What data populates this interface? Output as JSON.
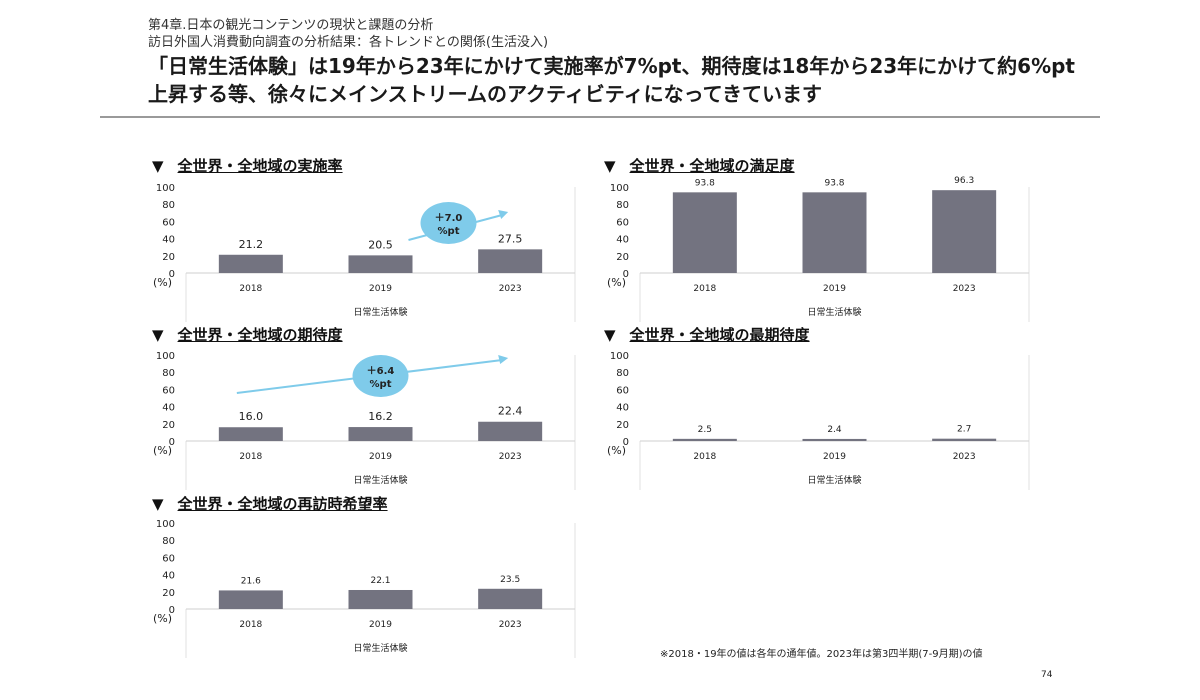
{
  "header": {
    "chapter": "第4章.日本の観光コンテンツの現状と課題の分析",
    "subtitle": "訪日外国人消費動向調査の分析結果：各トレンドとの関係(生活没入)",
    "headline": "「日常生活体験」は19年から23年にかけて実施率が7%pt、期待度は18年から23年にかけて約6%pt上昇する等、徐々にメインストリームのアクティビティになってきています"
  },
  "chart_data": [
    {
      "type": "bar",
      "title": "全世界・全地域の実施率",
      "categories": [
        "2018",
        "2019",
        "2023"
      ],
      "values": [
        21.2,
        20.5,
        27.5
      ],
      "xlabel": "日常生活体験",
      "ylabel": "(%)",
      "ylim": [
        0,
        100
      ],
      "yticks": [
        0,
        20,
        40,
        60,
        80,
        100
      ],
      "grid": false,
      "annotation": {
        "line1": "＋7.0",
        "line2": "%pt"
      }
    },
    {
      "type": "bar",
      "title": "全世界・全地域の満足度",
      "categories": [
        "2018",
        "2019",
        "2023"
      ],
      "values": [
        93.8,
        93.8,
        96.3
      ],
      "xlabel": "日常生活体験",
      "ylabel": "(%)",
      "ylim": [
        0,
        100
      ],
      "yticks": [
        0,
        20,
        40,
        60,
        80,
        100
      ],
      "grid": false
    },
    {
      "type": "bar",
      "title": "全世界・全地域の期待度",
      "categories": [
        "2018",
        "2019",
        "2023"
      ],
      "values": [
        16.0,
        16.2,
        22.4
      ],
      "xlabel": "日常生活体験",
      "ylabel": "(%)",
      "ylim": [
        0,
        100
      ],
      "yticks": [
        0,
        20,
        40,
        60,
        80,
        100
      ],
      "grid": false,
      "annotation": {
        "line1": "＋6.4",
        "line2": "%pt"
      }
    },
    {
      "type": "bar",
      "title": "全世界・全地域の最期待度",
      "categories": [
        "2018",
        "2019",
        "2023"
      ],
      "values": [
        2.5,
        2.4,
        2.7
      ],
      "xlabel": "日常生活体験",
      "ylabel": "(%)",
      "ylim": [
        0,
        100
      ],
      "yticks": [
        0,
        20,
        40,
        60,
        80,
        100
      ],
      "grid": false
    },
    {
      "type": "bar",
      "title": "全世界・全地域の再訪時希望率",
      "categories": [
        "2018",
        "2019",
        "2023"
      ],
      "values": [
        21.6,
        22.1,
        23.5
      ],
      "xlabel": "日常生活体験",
      "ylabel": "(%)",
      "ylim": [
        0,
        100
      ],
      "yticks": [
        0,
        20,
        40,
        60,
        80,
        100
      ],
      "grid": false
    }
  ],
  "footer": {
    "note": "※2018・19年の値は各年の通年値。2023年は第3四半期(7-9月期)の値",
    "page": "74"
  },
  "colors": {
    "bar": "#737380",
    "bubble": "#7fcbea",
    "arrow": "#7fcbea",
    "rule": "#9a9a9a"
  },
  "marker": "▼"
}
